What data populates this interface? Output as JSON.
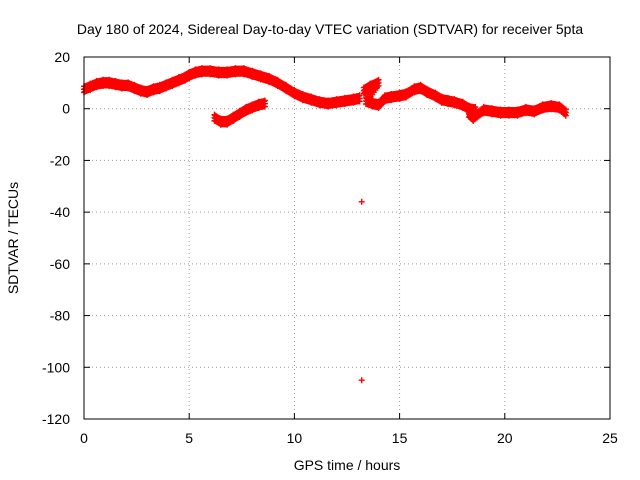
{
  "chart_data": {
    "type": "scatter",
    "title": "Day 180 of 2024, Sidereal Day-to-day VTEC variation (SDTVAR) for receiver 5pta",
    "xlabel": "GPS time / hours",
    "ylabel": "SDTVAR / TECUs",
    "xlim": [
      0,
      25
    ],
    "ylim": [
      -120,
      20
    ],
    "xticks": [
      0,
      5,
      10,
      15,
      20,
      25
    ],
    "yticks": [
      -120,
      -100,
      -80,
      -60,
      -40,
      -20,
      0,
      20
    ],
    "grid": true,
    "marker": "+",
    "color": "#ff0000",
    "series": [
      {
        "name": "main trace",
        "points": [
          [
            0.0,
            7.5
          ],
          [
            0.3,
            8.5
          ],
          [
            0.6,
            9.5
          ],
          [
            0.9,
            10.0
          ],
          [
            1.2,
            10.0
          ],
          [
            1.5,
            9.5
          ],
          [
            1.8,
            9.0
          ],
          [
            2.1,
            9.0
          ],
          [
            2.4,
            8.0
          ],
          [
            2.7,
            7.0
          ],
          [
            3.0,
            6.5
          ],
          [
            3.3,
            7.5
          ],
          [
            3.6,
            8.0
          ],
          [
            3.9,
            9.0
          ],
          [
            4.2,
            10.0
          ],
          [
            4.5,
            11.0
          ],
          [
            4.8,
            12.0
          ],
          [
            5.0,
            13.0
          ],
          [
            5.3,
            14.0
          ],
          [
            5.6,
            14.5
          ],
          [
            6.0,
            14.5
          ],
          [
            6.4,
            14.0
          ],
          [
            6.8,
            14.0
          ],
          [
            7.2,
            14.5
          ],
          [
            7.6,
            14.5
          ],
          [
            8.0,
            13.5
          ],
          [
            8.4,
            12.5
          ],
          [
            8.8,
            11.5
          ],
          [
            9.2,
            10.0
          ],
          [
            9.6,
            8.0
          ],
          [
            10.0,
            6.0
          ],
          [
            10.4,
            4.5
          ],
          [
            10.8,
            3.5
          ],
          [
            11.2,
            2.5
          ],
          [
            11.6,
            2.0
          ],
          [
            12.0,
            2.5
          ],
          [
            12.4,
            3.0
          ],
          [
            12.8,
            3.5
          ],
          [
            13.1,
            4.0
          ]
        ]
      },
      {
        "name": "dip segment",
        "points": [
          [
            6.2,
            -3.5
          ],
          [
            6.5,
            -5.0
          ],
          [
            6.8,
            -5.0
          ],
          [
            7.1,
            -3.5
          ],
          [
            7.4,
            -2.0
          ],
          [
            7.7,
            -0.5
          ],
          [
            8.0,
            0.5
          ],
          [
            8.3,
            1.5
          ],
          [
            8.6,
            2.0
          ]
        ]
      },
      {
        "name": "late segment",
        "points": [
          [
            13.3,
            7.0
          ],
          [
            13.6,
            8.5
          ],
          [
            14.0,
            10.0
          ],
          [
            13.4,
            3.0
          ],
          [
            13.7,
            2.0
          ],
          [
            14.0,
            1.5
          ],
          [
            14.3,
            4.0
          ],
          [
            14.6,
            4.5
          ],
          [
            15.0,
            5.0
          ],
          [
            15.3,
            5.5
          ],
          [
            15.7,
            7.5
          ],
          [
            16.0,
            8.0
          ],
          [
            16.3,
            6.5
          ],
          [
            16.7,
            5.0
          ],
          [
            17.0,
            3.5
          ],
          [
            17.3,
            3.0
          ],
          [
            17.6,
            2.5
          ],
          [
            18.0,
            1.5
          ],
          [
            18.3,
            0.0
          ],
          [
            18.6,
            -0.5
          ],
          [
            18.3,
            -2.0
          ],
          [
            18.5,
            -3.5
          ],
          [
            19.0,
            -0.5
          ],
          [
            19.4,
            -1.0
          ],
          [
            19.8,
            -1.5
          ],
          [
            20.2,
            -1.5
          ],
          [
            20.6,
            -1.5
          ],
          [
            21.0,
            -0.5
          ],
          [
            21.4,
            -1.0
          ],
          [
            21.8,
            0.5
          ],
          [
            22.2,
            1.0
          ],
          [
            22.6,
            0.5
          ],
          [
            22.9,
            -1.5
          ]
        ]
      },
      {
        "name": "outliers",
        "points": [
          [
            13.2,
            -36.0
          ],
          [
            13.2,
            -105.0
          ]
        ]
      }
    ]
  }
}
